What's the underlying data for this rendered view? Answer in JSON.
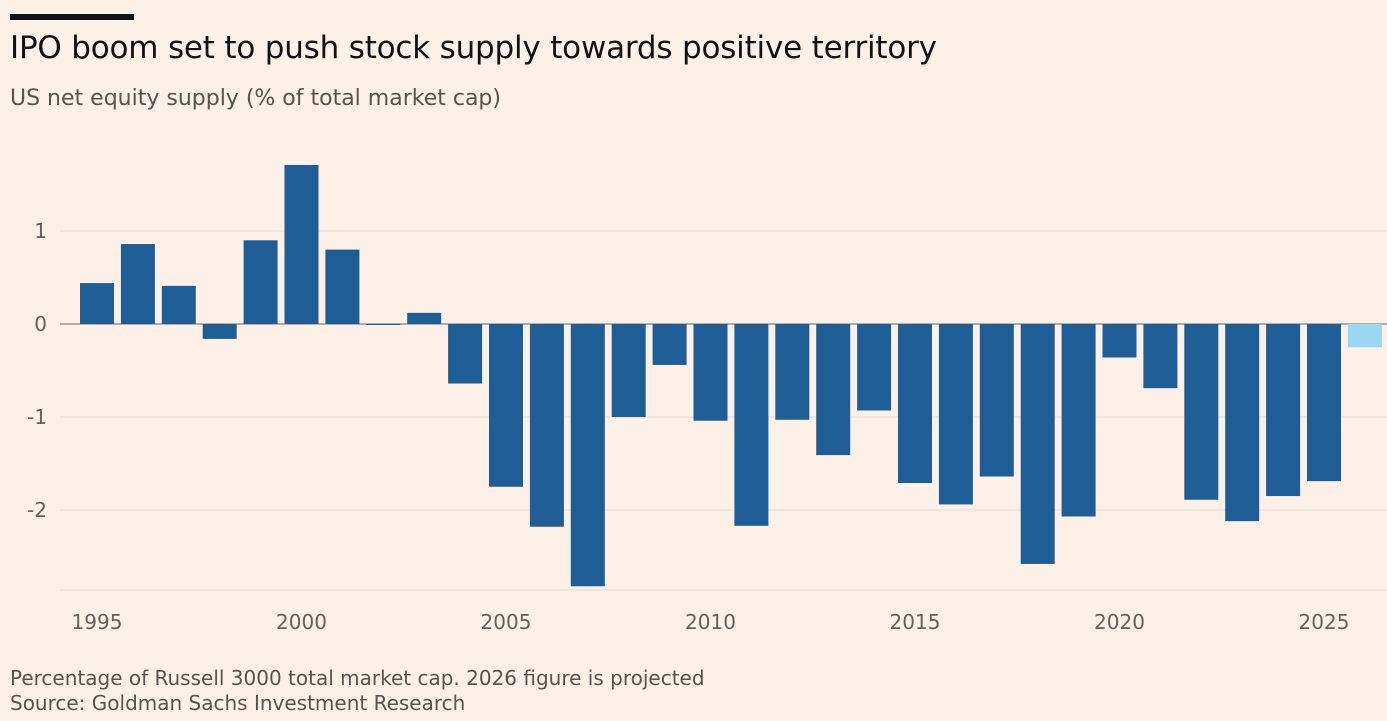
{
  "header": {
    "title": "IPO boom set to push stock supply towards positive territory",
    "subtitle": "US net equity supply (% of total market cap)"
  },
  "footer": {
    "note": "Percentage of Russell 3000 total market cap. 2026 figure is projected",
    "source": "Source: Goldman Sachs Investment Research"
  },
  "colors": {
    "background": "#fdf1e7",
    "bar": "#1e5d96",
    "projected_bar": "#9ad7f1",
    "gridline": "#e5d9ce",
    "zero_line": "#9c9590"
  },
  "chart_data": {
    "type": "bar",
    "title": "IPO boom set to push stock supply towards positive territory",
    "ylabel": "US net equity supply (% of total market cap)",
    "xlabel": "",
    "categories": [
      "1995",
      "1996",
      "1997",
      "1998",
      "1999",
      "2000",
      "2001",
      "2002",
      "2003",
      "2004",
      "2005",
      "2006",
      "2007",
      "2008",
      "2009",
      "2010",
      "2011",
      "2012",
      "2013",
      "2014",
      "2015",
      "2016",
      "2017",
      "2018",
      "2019",
      "2020",
      "2021",
      "2022",
      "2023",
      "2024",
      "2025",
      "2026"
    ],
    "values": [
      0.44,
      0.86,
      0.41,
      -0.16,
      0.9,
      1.71,
      0.8,
      -0.01,
      0.12,
      -0.64,
      -1.75,
      -2.18,
      -2.82,
      -1.0,
      -0.44,
      -1.04,
      -2.17,
      -1.03,
      -1.41,
      -0.93,
      -1.71,
      -1.94,
      -1.64,
      -2.58,
      -2.07,
      -0.36,
      -0.69,
      -1.89,
      -2.12,
      -1.85,
      -1.69,
      -0.25
    ],
    "projected": [
      "2026"
    ],
    "x_ticks": [
      "1995",
      "2000",
      "2005",
      "2010",
      "2015",
      "2020",
      "2025"
    ],
    "y_ticks": [
      1,
      0,
      -1,
      -2
    ],
    "y_tick_labels": [
      "1",
      "0",
      "-1",
      "-2"
    ],
    "ylim": [
      -2.85,
      1.85
    ],
    "grid": true,
    "legend": "none"
  }
}
